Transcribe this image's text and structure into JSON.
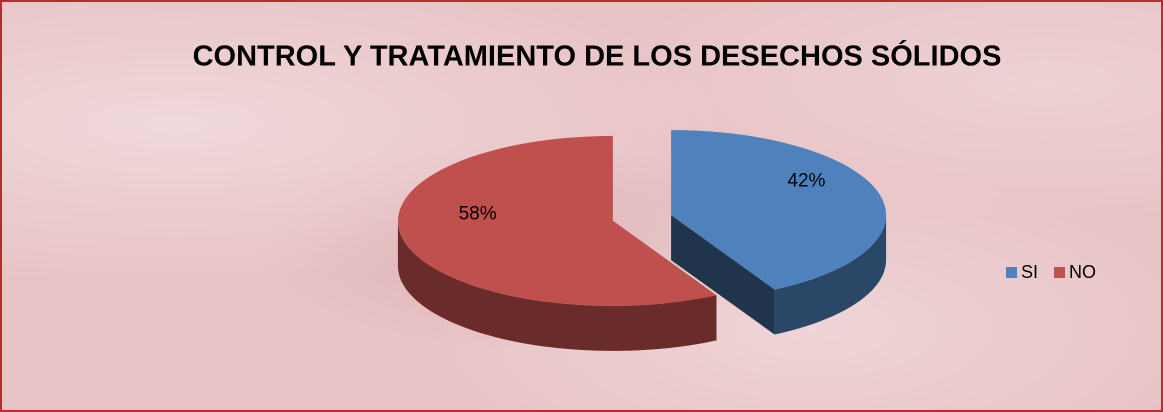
{
  "chart_data": {
    "type": "pie",
    "title": "CONTROL Y TRATAMIENTO DE LOS DESECHOS SÓLIDOS",
    "categories": [
      "SI",
      "NO"
    ],
    "values": [
      42,
      58
    ],
    "value_labels": [
      "42%",
      "58%"
    ],
    "colors": [
      "#4f81bd",
      "#c0504d"
    ],
    "legend": "right"
  }
}
